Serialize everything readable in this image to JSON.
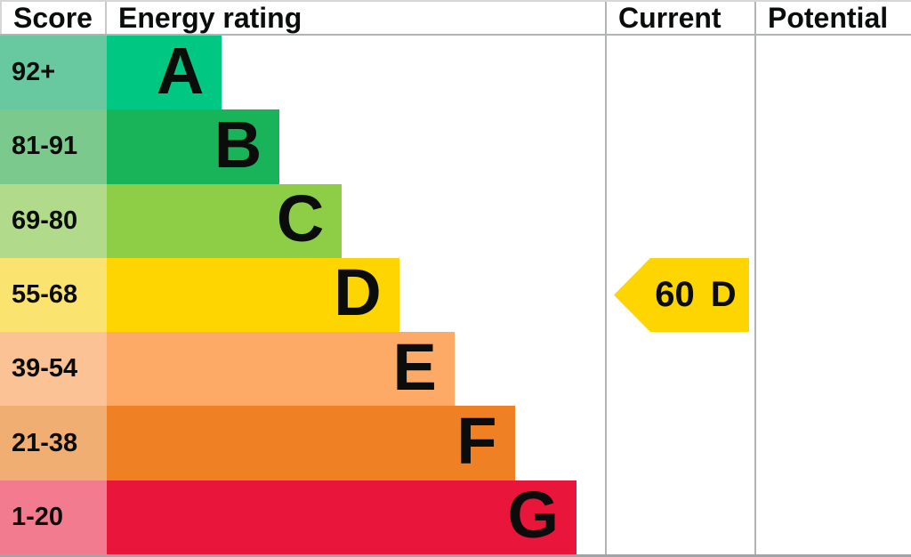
{
  "header": {
    "score": "Score",
    "energy_rating": "Energy rating",
    "current": "Current",
    "potential": "Potential"
  },
  "bands": [
    {
      "letter": "A",
      "score_range": "92+",
      "color": "#00c781",
      "score_color": "#68c9a0",
      "bar_width_pct": 23.1
    },
    {
      "letter": "B",
      "score_range": "81-91",
      "color": "#19b459",
      "score_color": "#7bc98d",
      "bar_width_pct": 34.7
    },
    {
      "letter": "C",
      "score_range": "69-80",
      "color": "#8dce46",
      "score_color": "#b2da8b",
      "bar_width_pct": 47.2
    },
    {
      "letter": "D",
      "score_range": "55-68",
      "color": "#ffd500",
      "score_color": "#fae36e",
      "bar_width_pct": 58.7
    },
    {
      "letter": "E",
      "score_range": "39-54",
      "color": "#fcaa65",
      "score_color": "#fbc395",
      "bar_width_pct": 69.8
    },
    {
      "letter": "F",
      "score_range": "21-38",
      "color": "#ef8023",
      "score_color": "#f1ae72",
      "bar_width_pct": 81.9
    },
    {
      "letter": "G",
      "score_range": "1-20",
      "color": "#e9153b",
      "score_color": "#f27b90",
      "bar_width_pct": 94.3
    }
  ],
  "current": {
    "value": "60",
    "band": "D"
  },
  "border_color": "#b1b4b6",
  "text_color": "#0b0c0c",
  "chart_data": {
    "type": "bar",
    "orientation": "horizontal",
    "title": "Energy rating",
    "columns": [
      "Score",
      "Energy rating",
      "Current",
      "Potential"
    ],
    "categories": [
      "A",
      "B",
      "C",
      "D",
      "E",
      "F",
      "G"
    ],
    "band_score_ranges": {
      "A": "92+",
      "B": "81-91",
      "C": "69-80",
      "D": "55-68",
      "E": "39-54",
      "F": "21-38",
      "G": "1-20"
    },
    "band_colors": {
      "A": "#00c781",
      "B": "#19b459",
      "C": "#8dce46",
      "D": "#ffd500",
      "E": "#fcaa65",
      "F": "#ef8023",
      "G": "#e9153b"
    },
    "series": [
      {
        "name": "Current",
        "score": 60,
        "band": "D"
      },
      {
        "name": "Potential",
        "score": null,
        "band": null
      }
    ],
    "legend": false,
    "grid": false
  }
}
